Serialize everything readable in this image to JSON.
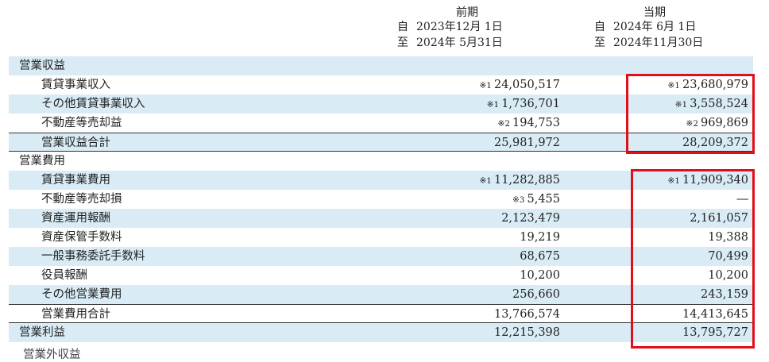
{
  "header": {
    "prev": {
      "title": "前期",
      "from_mark": "自",
      "from_date": "2023年12月 1日",
      "to_mark": "至",
      "to_date": "2024年 5月31日"
    },
    "curr": {
      "title": "当期",
      "from_mark": "自",
      "from_date": "2024年 6月 1日",
      "to_mark": "至",
      "to_date": "2024年11月30日"
    }
  },
  "rows": [
    {
      "label": "営業収益",
      "prev_note": "",
      "prev": "",
      "curr_note": "",
      "curr": ""
    },
    {
      "label": "賃貸事業収入",
      "prev_note": "※1",
      "prev": "24,050,517",
      "curr_note": "※1",
      "curr": "23,680,979"
    },
    {
      "label": "その他賃貸事業収入",
      "prev_note": "※1",
      "prev": "1,736,701",
      "curr_note": "※1",
      "curr": "3,558,524"
    },
    {
      "label": "不動産等売却益",
      "prev_note": "※2",
      "prev": "194,753",
      "curr_note": "※2",
      "curr": "969,869"
    },
    {
      "label": "営業収益合計",
      "prev_note": "",
      "prev": "25,981,972",
      "curr_note": "",
      "curr": "28,209,372"
    },
    {
      "label": "営業費用",
      "prev_note": "",
      "prev": "",
      "curr_note": "",
      "curr": ""
    },
    {
      "label": "賃貸事業費用",
      "prev_note": "※1",
      "prev": "11,282,885",
      "curr_note": "※1",
      "curr": "11,909,340"
    },
    {
      "label": "不動産等売却損",
      "prev_note": "※3",
      "prev": "5,455",
      "curr_note": "",
      "curr": "―"
    },
    {
      "label": "資産運用報酬",
      "prev_note": "",
      "prev": "2,123,479",
      "curr_note": "",
      "curr": "2,161,057"
    },
    {
      "label": "資産保管手数料",
      "prev_note": "",
      "prev": "19,219",
      "curr_note": "",
      "curr": "19,388"
    },
    {
      "label": "一般事務委託手数料",
      "prev_note": "",
      "prev": "68,675",
      "curr_note": "",
      "curr": "70,499"
    },
    {
      "label": "役員報酬",
      "prev_note": "",
      "prev": "10,200",
      "curr_note": "",
      "curr": "10,200"
    },
    {
      "label": "その他営業費用",
      "prev_note": "",
      "prev": "256,660",
      "curr_note": "",
      "curr": "243,159"
    },
    {
      "label": "営業費用合計",
      "prev_note": "",
      "prev": "13,766,574",
      "curr_note": "",
      "curr": "14,413,645"
    },
    {
      "label": "営業利益",
      "prev_note": "",
      "prev": "12,215,398",
      "curr_note": "",
      "curr": "13,795,727"
    }
  ],
  "cutoff_text": "営業外収益"
}
